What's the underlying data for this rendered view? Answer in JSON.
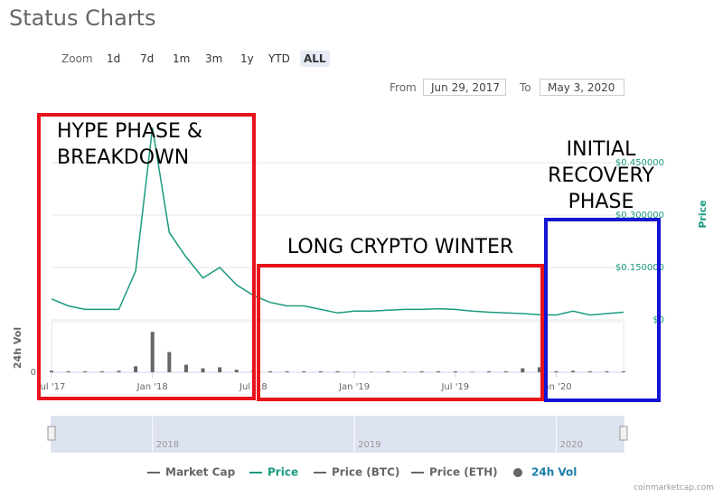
{
  "chart_data": {
    "type": "line",
    "title": "Status Charts",
    "zoom_label": "Zoom",
    "zoom_buttons": [
      "1d",
      "7d",
      "1m",
      "3m",
      "1y",
      "YTD",
      "ALL"
    ],
    "zoom_active": "ALL",
    "from_label": "From",
    "from_date": "Jun 29, 2017",
    "to_label": "To",
    "to_date": "May 3, 2020",
    "x": [
      "2017-07",
      "2017-08",
      "2017-09",
      "2017-10",
      "2017-11",
      "2017-12",
      "2018-01",
      "2018-02",
      "2018-03",
      "2018-04",
      "2018-05",
      "2018-06",
      "2018-07",
      "2018-08",
      "2018-09",
      "2018-10",
      "2018-11",
      "2018-12",
      "2019-01",
      "2019-02",
      "2019-03",
      "2019-04",
      "2019-05",
      "2019-06",
      "2019-07",
      "2019-08",
      "2019-09",
      "2019-10",
      "2019-11",
      "2019-12",
      "2020-01",
      "2020-02",
      "2020-03",
      "2020-04",
      "2020-05"
    ],
    "xlim": [
      "2017-07",
      "2020-05"
    ],
    "xticks": [
      {
        "value": "2017-07",
        "label": "Jul '17"
      },
      {
        "value": "2018-01",
        "label": "Jan '18"
      },
      {
        "value": "2018-07",
        "label": "Jul '18"
      },
      {
        "value": "2019-01",
        "label": "Jan '19"
      },
      {
        "value": "2019-07",
        "label": "Jul '19"
      },
      {
        "value": "2020-01",
        "label": "Jan '20"
      }
    ],
    "y2_label": "Price",
    "y2lim": [
      0,
      0.6
    ],
    "y2ticks": [
      {
        "value": 0,
        "label": "$0"
      },
      {
        "value": 0.15,
        "label": "$0.150000"
      },
      {
        "value": 0.3,
        "label": "$0.300000"
      },
      {
        "value": 0.45,
        "label": "$0.450000"
      }
    ],
    "vol_label": "24h Vol",
    "vol_ylim": [
      0,
      100
    ],
    "vol_yticks": [
      0
    ],
    "grid": true,
    "series": [
      {
        "name": "Market Cap",
        "color": "#666666",
        "visible": false
      },
      {
        "name": "Price",
        "color": "#1a9a7e",
        "axis": "y2",
        "visible": true,
        "values": [
          0.06,
          0.04,
          0.03,
          0.03,
          0.03,
          0.14,
          0.55,
          0.25,
          0.18,
          0.12,
          0.15,
          0.1,
          0.07,
          0.05,
          0.04,
          0.04,
          0.03,
          0.02,
          0.025,
          0.025,
          0.028,
          0.03,
          0.03,
          0.032,
          0.03,
          0.025,
          0.022,
          0.02,
          0.018,
          0.015,
          0.014,
          0.025,
          0.014,
          0.018,
          0.022
        ]
      },
      {
        "name": "Price (BTC)",
        "color": "#666666",
        "visible": false
      },
      {
        "name": "Price (ETH)",
        "color": "#666666",
        "visible": false
      },
      {
        "name": "24h Vol",
        "color": "#666666",
        "axis": "vol",
        "visible": true,
        "values": [
          3,
          2,
          2,
          2,
          3,
          12,
          80,
          40,
          15,
          8,
          10,
          5,
          4,
          2,
          2,
          2,
          2,
          2,
          1,
          1,
          2,
          1,
          2,
          2,
          2,
          1,
          2,
          2,
          8,
          10,
          2,
          3,
          2,
          2,
          2
        ]
      }
    ],
    "navigator_ticks": [
      "2018",
      "2019",
      "2020"
    ],
    "annotations": [
      {
        "text": "HYPE PHASE & BREAKDOWN",
        "color": "#e8141b"
      },
      {
        "text": "LONG CRYPTO WINTER",
        "color": "#e8141b"
      },
      {
        "text": "INITIAL RECOVERY PHASE",
        "color": "#1414d2"
      }
    ],
    "credit": "coinmarketcap.com"
  }
}
